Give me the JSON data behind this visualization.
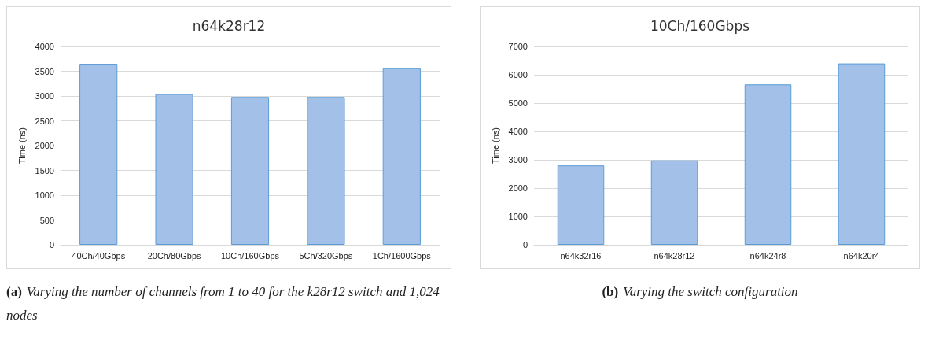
{
  "chart_data": [
    {
      "type": "bar",
      "title": "n64k28r12",
      "ylabel": "Time (ns)",
      "categories": [
        "40Ch/40Gbps",
        "20Ch/80Gbps",
        "10Ch/160Gbps",
        "5Ch/320Gbps",
        "1Ch/1600Gbps"
      ],
      "values": [
        3650,
        3040,
        2980,
        2980,
        3560
      ],
      "color": "#a3c1e8",
      "ylim": [
        0,
        4000
      ],
      "yticks": [
        0,
        500,
        1000,
        1500,
        2000,
        2500,
        3000,
        3500,
        4000
      ],
      "grid": "y",
      "annotations": [
        "(a) Varying the number of channels from 1 to 40 for the k28r12 switch and 1,024 nodes"
      ]
    },
    {
      "type": "bar",
      "title": "10Ch/160Gbps",
      "ylabel": "Time (ns)",
      "categories": [
        "n64k32r16",
        "n64k28r12",
        "n64k24r8",
        "n64k20r4"
      ],
      "values": [
        2800,
        2980,
        5660,
        6400
      ],
      "color": "#a3c1e8",
      "ylim": [
        0,
        7000
      ],
      "yticks": [
        0,
        1000,
        2000,
        3000,
        4000,
        5000,
        6000,
        7000
      ],
      "grid": "y",
      "annotations": [
        "(b) Varying the switch configuration"
      ]
    }
  ]
}
